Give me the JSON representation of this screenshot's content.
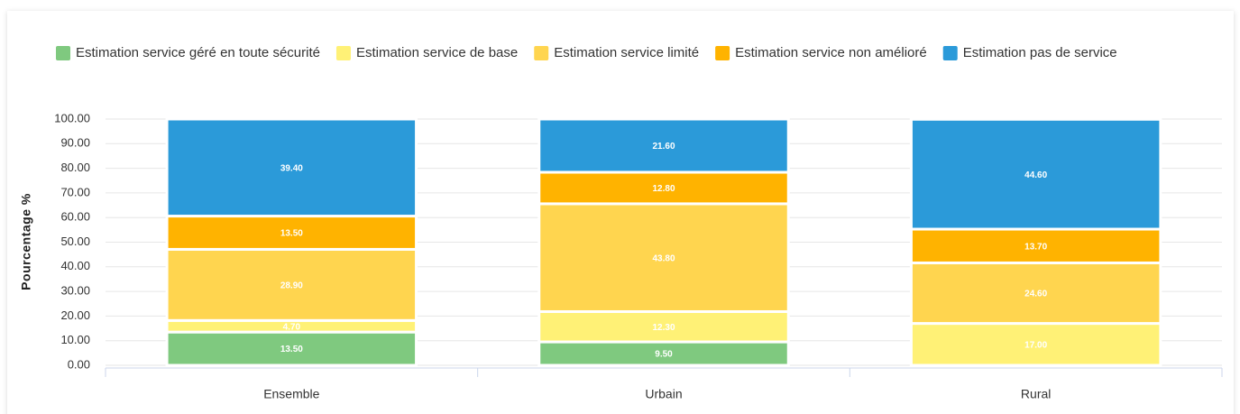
{
  "chart_data": {
    "type": "stacked_bar",
    "y_label": "Pourcentage %",
    "categories": [
      "Ensemble",
      "Urbain",
      "Rural"
    ],
    "series": [
      {
        "name": "Estimation service géré en toute sécurité",
        "color": "#7fc97f",
        "values": [
          13.5,
          9.5,
          null
        ],
        "value_labels": [
          "13.50",
          "9.50",
          null
        ]
      },
      {
        "name": "Estimation service de base",
        "color": "#fff176",
        "values": [
          4.7,
          12.3,
          17
        ],
        "value_labels": [
          "4.70",
          "12.30",
          "17.00"
        ]
      },
      {
        "name": "Estimation service limité",
        "color": "#ffd54f",
        "values": [
          28.9,
          43.8,
          24.6
        ],
        "value_labels": [
          "28.90",
          "43.80",
          "24.60"
        ]
      },
      {
        "name": "Estimation service non amélioré",
        "color": "#ffb300",
        "values": [
          13.5,
          12.8,
          13.7
        ],
        "value_labels": [
          "13.50",
          "12.80",
          "13.70"
        ]
      },
      {
        "name": "Estimation pas de service",
        "color": "#2b9ad9",
        "values": [
          39.4,
          21.6,
          44.6
        ],
        "value_labels": [
          "39.40",
          "21.60",
          "44.60"
        ]
      }
    ],
    "ylim": [
      0,
      100
    ],
    "yticks": [
      {
        "value": 0,
        "label": "0.00"
      },
      {
        "value": 10,
        "label": "10.00"
      },
      {
        "value": 20,
        "label": "20.00"
      },
      {
        "value": 30,
        "label": "30.00"
      },
      {
        "value": 40,
        "label": "40.00"
      },
      {
        "value": 50,
        "label": "50.00"
      },
      {
        "value": 60,
        "label": "60.00"
      },
      {
        "value": 70,
        "label": "70.00"
      },
      {
        "value": 80,
        "label": "80.00"
      },
      {
        "value": 90,
        "label": "90.00"
      },
      {
        "value": 100,
        "label": "100.00"
      }
    ],
    "grid": true
  }
}
